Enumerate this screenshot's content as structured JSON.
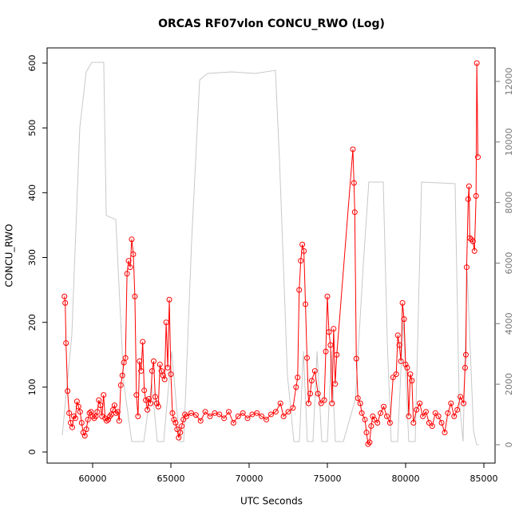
{
  "chart_data": {
    "type": "line",
    "title": "ORCAS RF07vlon CONCU_RWO (Log)",
    "xlabel": "UTC Seconds",
    "ylabel": "CONCU_RWO",
    "xlim": [
      57092,
      85714
    ],
    "ylim": [
      -17.2,
      623.4
    ],
    "y2lim": [
      -607,
      13107
    ],
    "xticks": [
      60000,
      65000,
      70000,
      75000,
      80000,
      85000
    ],
    "yticks": [
      0,
      100,
      200,
      300,
      400,
      500,
      600
    ],
    "y2ticks": [
      0,
      2000,
      4000,
      6000,
      8000,
      10000,
      12000
    ],
    "series": [
      {
        "axis": "y2",
        "color": "#c8c8c8",
        "x": [
          58060,
          58670,
          59180,
          59590,
          59950,
          60710,
          60870,
          61480,
          61990,
          62500,
          62910,
          63270,
          63780,
          64130,
          64540,
          65050,
          65560,
          65820,
          66330,
          66840,
          67350,
          68880,
          70410,
          71680,
          71940,
          72450,
          72860,
          73210,
          73470,
          73720,
          74080,
          74340,
          74640,
          75000,
          75260,
          75510,
          76020,
          76790,
          77300,
          77650,
          78570,
          78830,
          79080,
          79490,
          79850,
          80200,
          80610,
          81020,
          83160,
          83420,
          83670,
          83930,
          84340,
          84540,
          84690
        ],
        "values": [
          316,
          3613,
          10470,
          12315,
          12630,
          12630,
          7570,
          7437,
          2030,
          105,
          105,
          105,
          2030,
          105,
          105,
          3085,
          105,
          105,
          6777,
          12050,
          12263,
          12315,
          12263,
          12368,
          9415,
          2294,
          105,
          105,
          3085,
          105,
          105,
          3085,
          105,
          105,
          3085,
          105,
          105,
          1503,
          5986,
          8676,
          8676,
          3349,
          105,
          105,
          4140,
          105,
          105,
          8676,
          8623,
          1503,
          105,
          5723,
          448,
          0,
          0
        ]
      },
      {
        "color": "#ff0000",
        "marker": "circle",
        "x": [
          58200,
          58250,
          58300,
          58400,
          58500,
          58600,
          58700,
          58800,
          58900,
          59000,
          59100,
          59200,
          59300,
          59400,
          59500,
          59600,
          59700,
          59800,
          59900,
          60000,
          60100,
          60200,
          60300,
          60400,
          60500,
          60600,
          60700,
          60800,
          60900,
          61000,
          61100,
          61200,
          61300,
          61400,
          61500,
          61600,
          61700,
          61800,
          61900,
          62000,
          62100,
          62200,
          62300,
          62400,
          62500,
          62600,
          62700,
          62800,
          62900,
          63000,
          63100,
          63200,
          63300,
          63400,
          63500,
          63600,
          63700,
          63800,
          63900,
          64000,
          64100,
          64200,
          64300,
          64400,
          64500,
          64600,
          64700,
          64800,
          64900,
          65000,
          65100,
          65200,
          65300,
          65400,
          65500,
          65600,
          65700,
          65800,
          65900,
          66000,
          66300,
          66600,
          66900,
          67200,
          67500,
          67800,
          68100,
          68400,
          68700,
          69000,
          69300,
          69600,
          69900,
          70200,
          70500,
          70800,
          71100,
          71400,
          71700,
          72000,
          72200,
          72500,
          72800,
          73000,
          73100,
          73200,
          73300,
          73400,
          73500,
          73600,
          73700,
          73800,
          73900,
          74000,
          74200,
          74400,
          74600,
          74800,
          74900,
          75000,
          75100,
          75200,
          75300,
          75400,
          75500,
          75600,
          76630,
          76700,
          76750,
          76850,
          76950,
          77100,
          77200,
          77400,
          77500,
          77600,
          77700,
          77800,
          77900,
          78000,
          78200,
          78400,
          78600,
          78800,
          79000,
          79200,
          79400,
          79500,
          79600,
          79700,
          79800,
          79900,
          80000,
          80100,
          80200,
          80300,
          80400,
          80500,
          80700,
          80900,
          81100,
          81300,
          81500,
          81700,
          81900,
          82100,
          82300,
          82500,
          82700,
          82900,
          83100,
          83300,
          83500,
          83700,
          83800,
          83850,
          83900,
          84000,
          84050,
          84100,
          84200,
          84300,
          84400,
          84500,
          84550,
          84620
        ],
        "values": [
          240,
          230,
          168,
          94,
          60,
          45,
          38,
          55,
          52,
          78,
          70,
          62,
          45,
          30,
          25,
          35,
          50,
          60,
          62,
          55,
          52,
          55,
          62,
          80,
          72,
          55,
          88,
          52,
          48,
          50,
          55,
          58,
          65,
          72,
          60,
          62,
          48,
          103,
          118,
          138,
          145,
          275,
          295,
          285,
          328,
          305,
          240,
          88,
          55,
          140,
          125,
          170,
          95,
          80,
          65,
          82,
          75,
          125,
          140,
          85,
          75,
          70,
          135,
          125,
          118,
          112,
          200,
          130,
          235,
          120,
          60,
          50,
          45,
          35,
          22,
          30,
          40,
          50,
          58,
          55,
          60,
          57,
          48,
          62,
          55,
          60,
          58,
          52,
          62,
          45,
          55,
          60,
          52,
          58,
          60,
          55,
          50,
          58,
          62,
          75,
          55,
          62,
          68,
          100,
          115,
          250,
          295,
          320,
          310,
          228,
          145,
          75,
          90,
          110,
          125,
          90,
          75,
          80,
          155,
          240,
          185,
          165,
          75,
          190,
          105,
          150,
          467,
          415,
          370,
          144,
          83,
          75,
          60,
          50,
          30,
          12,
          15,
          40,
          55,
          50,
          45,
          60,
          70,
          55,
          45,
          115,
          120,
          180,
          165,
          140,
          230,
          205,
          135,
          130,
          55,
          120,
          110,
          45,
          65,
          75,
          55,
          62,
          45,
          40,
          60,
          55,
          45,
          30,
          60,
          75,
          55,
          65,
          85,
          75,
          130,
          150,
          285,
          390,
          410,
          330,
          328,
          325,
          310,
          395,
          600,
          455
        ]
      }
    ]
  }
}
